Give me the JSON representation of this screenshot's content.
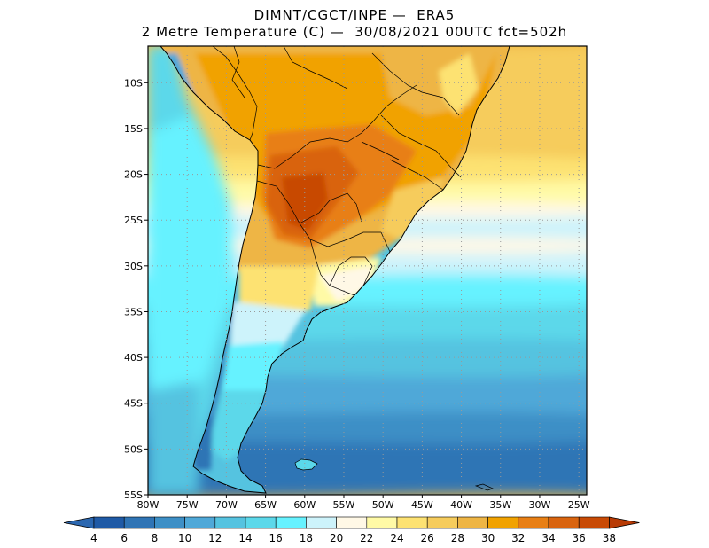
{
  "title": {
    "line1": "DIMNT/CGCT/INPE —  ERA5",
    "line2": "2 Metre Temperature (C) —  30/08/2021 00UTC fct=502h"
  },
  "map": {
    "lon_range": [
      -80,
      -24
    ],
    "lat_range": [
      -55,
      -6
    ],
    "lon_ticks": [
      {
        "value": -80,
        "label": "80W"
      },
      {
        "value": -75,
        "label": "75W"
      },
      {
        "value": -70,
        "label": "70W"
      },
      {
        "value": -65,
        "label": "65W"
      },
      {
        "value": -60,
        "label": "60W"
      },
      {
        "value": -55,
        "label": "55W"
      },
      {
        "value": -50,
        "label": "50W"
      },
      {
        "value": -45,
        "label": "45W"
      },
      {
        "value": -40,
        "label": "40W"
      },
      {
        "value": -35,
        "label": "35W"
      },
      {
        "value": -30,
        "label": "30W"
      },
      {
        "value": -25,
        "label": "25W"
      }
    ],
    "lat_ticks": [
      {
        "value": -10,
        "label": "10S"
      },
      {
        "value": -15,
        "label": "15S"
      },
      {
        "value": -20,
        "label": "20S"
      },
      {
        "value": -25,
        "label": "25S"
      },
      {
        "value": -30,
        "label": "30S"
      },
      {
        "value": -35,
        "label": "35S"
      },
      {
        "value": -40,
        "label": "40S"
      },
      {
        "value": -45,
        "label": "45S"
      },
      {
        "value": -50,
        "label": "50S"
      },
      {
        "value": -55,
        "label": "55S"
      }
    ],
    "grid": "dotted"
  },
  "colorbar": {
    "labels": [
      "4",
      "6",
      "8",
      "10",
      "12",
      "14",
      "16",
      "18",
      "20",
      "22",
      "24",
      "26",
      "28",
      "30",
      "32",
      "34",
      "36",
      "38"
    ],
    "colors": [
      "#1f5aa6",
      "#2f74b5",
      "#3d8fc6",
      "#4fa8d8",
      "#55c3e0",
      "#5bd8ea",
      "#66f2ff",
      "#cdf3fb",
      "#fff8e6",
      "#fffaa6",
      "#fde272",
      "#f6cc5c",
      "#eeb544",
      "#f1a200",
      "#e87f14",
      "#d9640f",
      "#c84a05"
    ],
    "end_low": "#2b67b0",
    "end_high": "#b83a04"
  }
}
